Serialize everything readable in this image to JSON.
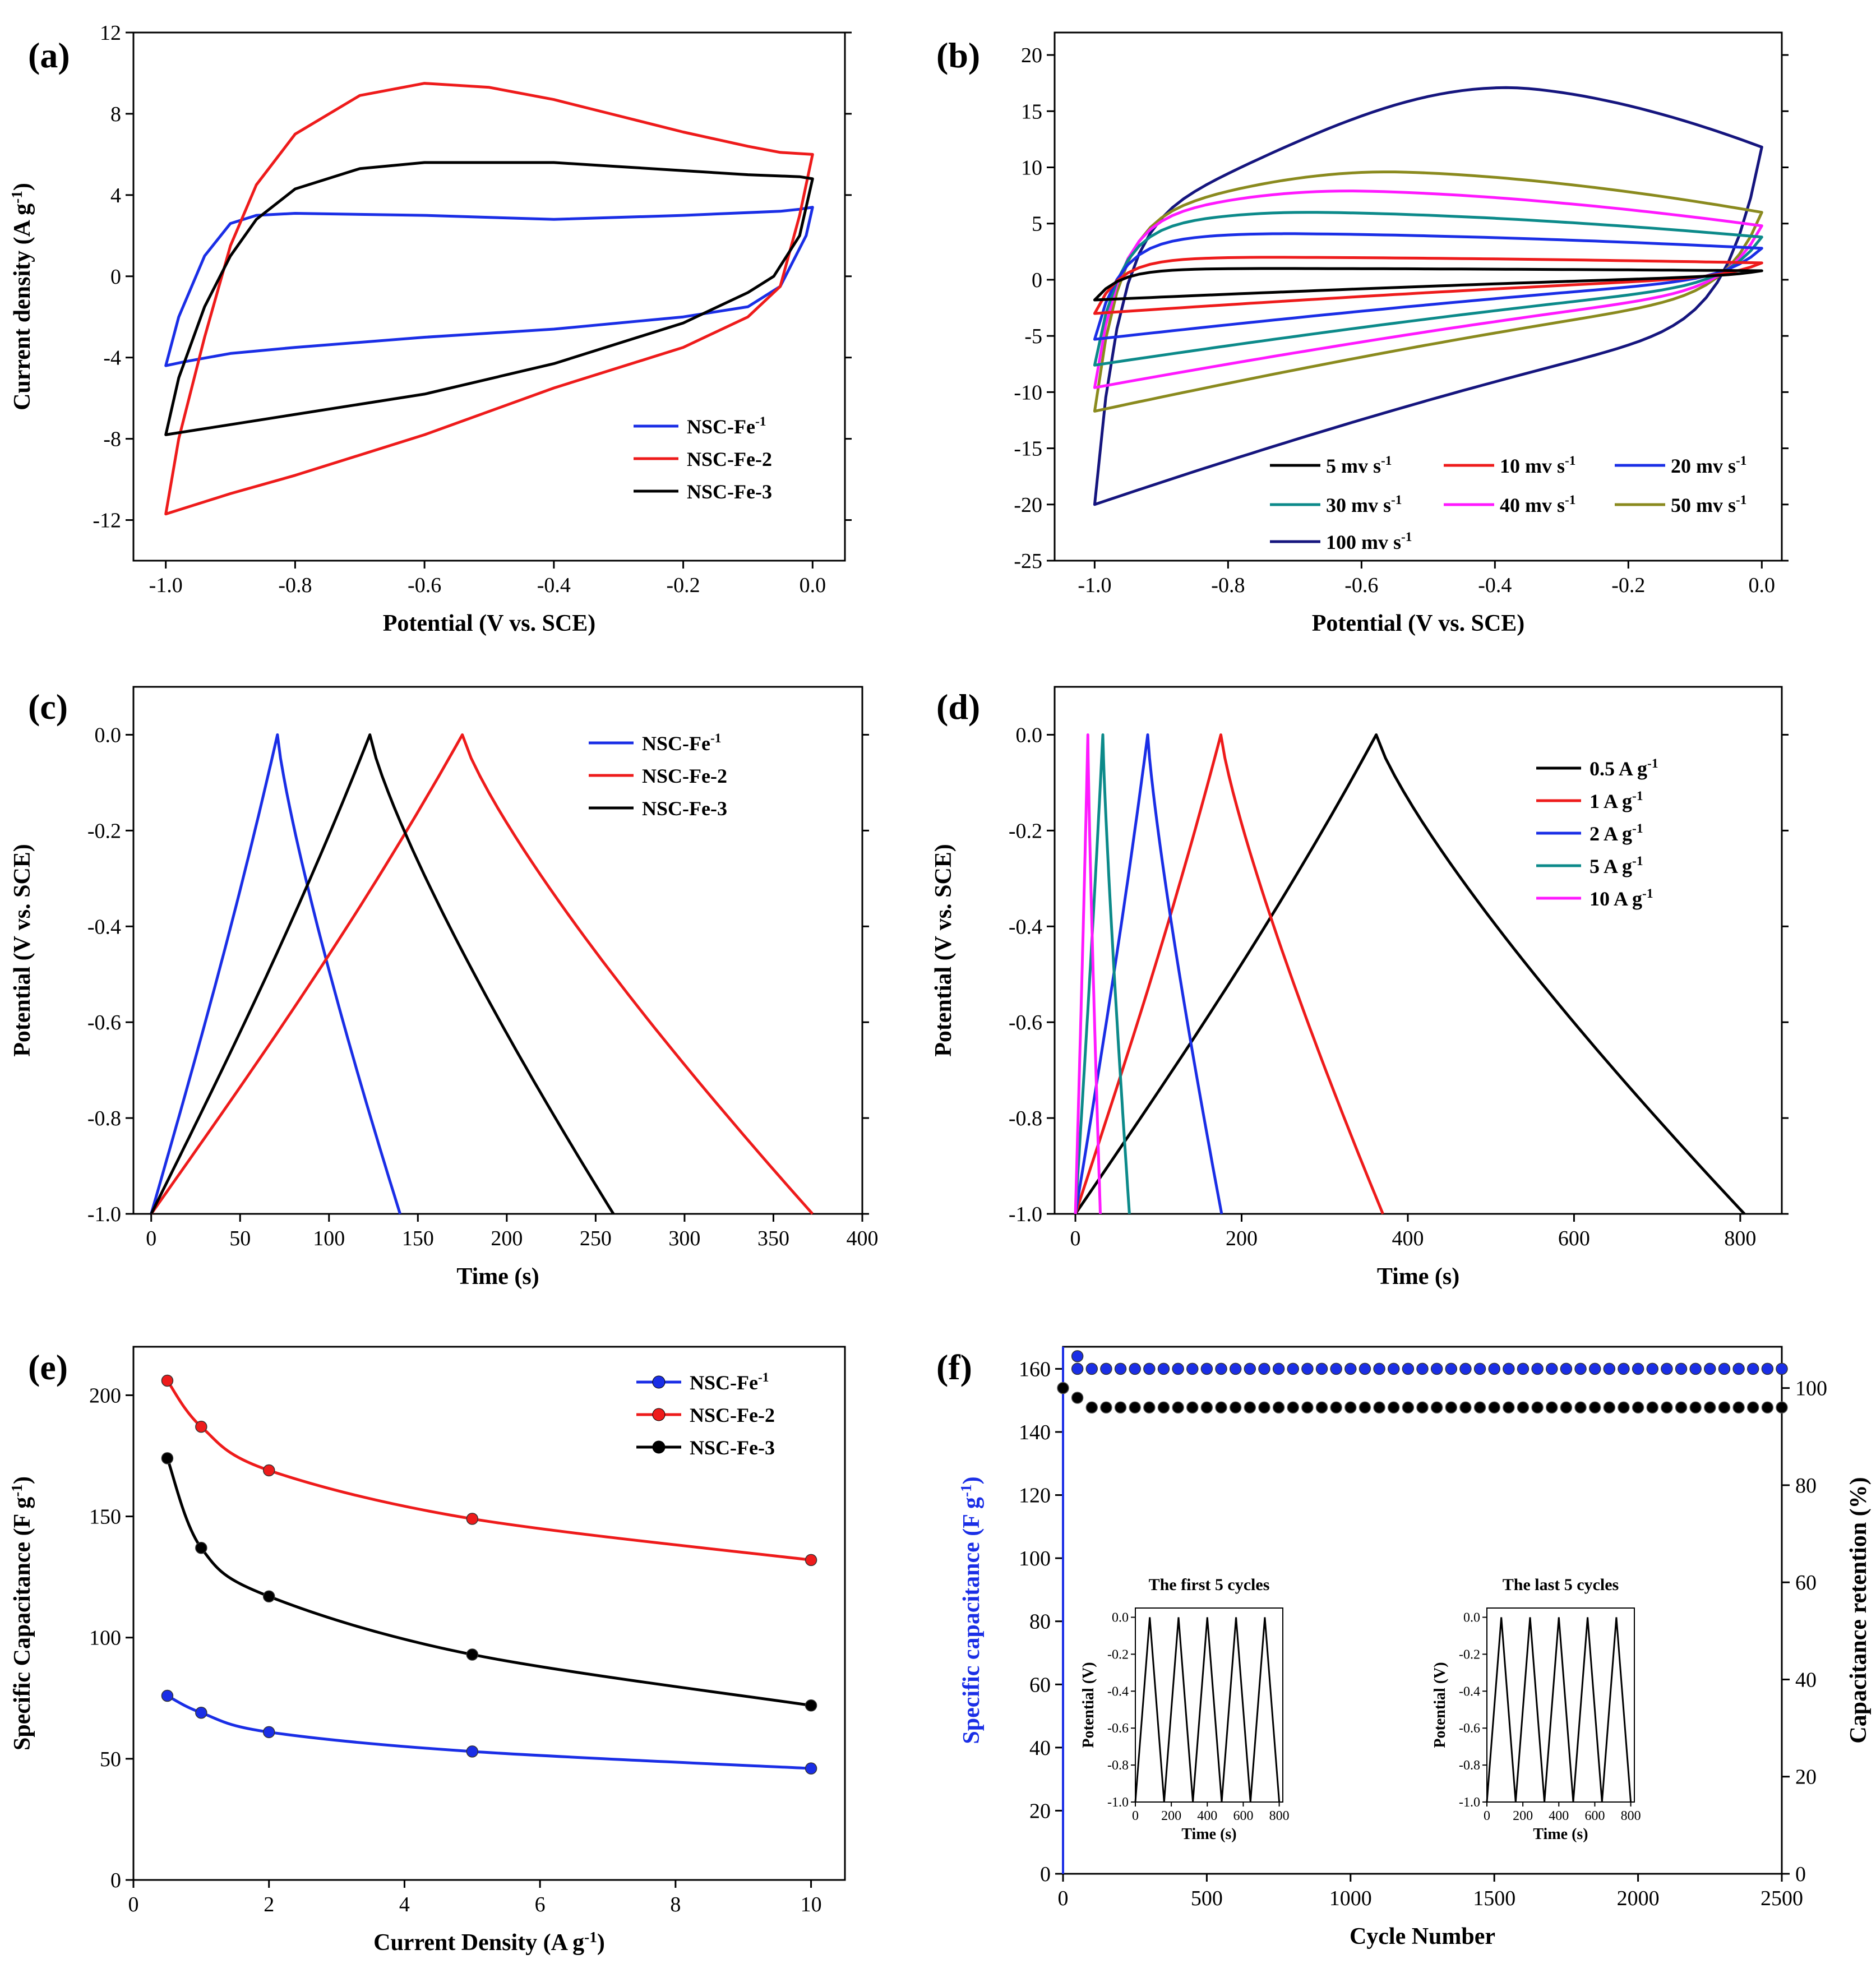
{
  "chart_data": [
    {
      "id": "a",
      "label": "(a)",
      "type": "line",
      "xlabel": "Potential (V vs. SCE)",
      "ylabel": "Current density (A g-1)",
      "xlim": [
        -1.05,
        0.05
      ],
      "ylim": [
        -14,
        12
      ],
      "xticks": [
        -1.0,
        -0.8,
        -0.6,
        -0.4,
        -0.2,
        0.0
      ],
      "xtick_labels": [
        "-1.0",
        "-0.8",
        "-0.6",
        "-0.4",
        "-0.2",
        "0.0"
      ],
      "yticks": [
        -12,
        -8,
        -4,
        0,
        4,
        8,
        12
      ],
      "ytick_labels": [
        "-12",
        "-8",
        "-4",
        "0",
        "4",
        "8",
        "12"
      ],
      "legend_position": "bottom-right",
      "series": [
        {
          "name": "NSC-Fe-1",
          "color": "#1a2ee6",
          "x": [
            -1.0,
            -0.98,
            -0.94,
            -0.9,
            -0.86,
            -0.8,
            -0.6,
            -0.4,
            -0.2,
            -0.05,
            -0.02,
            0.0,
            -0.01,
            -0.05,
            -0.1,
            -0.2,
            -0.4,
            -0.6,
            -0.8,
            -0.9,
            -0.97,
            -1.0
          ],
          "y": [
            -4.4,
            -2.0,
            1.0,
            2.6,
            3.0,
            3.1,
            3.0,
            2.8,
            3.0,
            3.2,
            3.3,
            3.4,
            2.0,
            -0.5,
            -1.5,
            -2.0,
            -2.6,
            -3.0,
            -3.5,
            -3.8,
            -4.2,
            -4.4
          ]
        },
        {
          "name": "NSC-Fe-2",
          "color": "#ee1b1b",
          "x": [
            -1.0,
            -0.98,
            -0.94,
            -0.9,
            -0.86,
            -0.8,
            -0.7,
            -0.6,
            -0.5,
            -0.4,
            -0.3,
            -0.2,
            -0.1,
            -0.05,
            0.0,
            -0.02,
            -0.05,
            -0.1,
            -0.2,
            -0.4,
            -0.6,
            -0.8,
            -0.9,
            -1.0
          ],
          "y": [
            -11.7,
            -8.0,
            -3.0,
            1.5,
            4.5,
            7.0,
            8.9,
            9.5,
            9.3,
            8.7,
            7.9,
            7.1,
            6.4,
            6.1,
            6.0,
            3.0,
            -0.5,
            -2.0,
            -3.5,
            -5.5,
            -7.8,
            -9.8,
            -10.7,
            -11.7
          ]
        },
        {
          "name": "NSC-Fe-3",
          "color": "#000000",
          "x": [
            -1.0,
            -0.98,
            -0.94,
            -0.9,
            -0.86,
            -0.8,
            -0.7,
            -0.6,
            -0.5,
            -0.4,
            -0.3,
            -0.2,
            -0.1,
            -0.02,
            0.0,
            -0.02,
            -0.06,
            -0.1,
            -0.2,
            -0.4,
            -0.6,
            -0.8,
            -0.9,
            -1.0
          ],
          "y": [
            -7.8,
            -5.0,
            -1.5,
            1.0,
            2.8,
            4.3,
            5.3,
            5.6,
            5.6,
            5.6,
            5.4,
            5.2,
            5.0,
            4.9,
            4.8,
            2.0,
            0.0,
            -0.8,
            -2.3,
            -4.3,
            -5.8,
            -6.8,
            -7.3,
            -7.8
          ]
        }
      ]
    },
    {
      "id": "b",
      "label": "(b)",
      "type": "line",
      "xlabel": "Potential (V vs. SCE)",
      "ylabel": "",
      "xlim": [
        -1.06,
        0.03
      ],
      "ylim": [
        -25,
        22
      ],
      "xticks": [
        -1.0,
        -0.8,
        -0.6,
        -0.4,
        -0.2,
        0.0
      ],
      "xtick_labels": [
        "-1.0",
        "-0.8",
        "-0.6",
        "-0.4",
        "-0.2",
        "0.0"
      ],
      "yticks": [
        -25,
        -20,
        -15,
        -10,
        -5,
        0,
        5,
        10,
        15,
        20
      ],
      "ytick_labels": [
        "-25",
        "-20",
        "-15",
        "-10",
        "-5",
        "0",
        "5",
        "10",
        "15",
        "20"
      ],
      "legend_position": "bottom-right",
      "series": [
        {
          "name": "5  mv s-1",
          "color": "#000000",
          "curve": {
            "top": 1.0,
            "peak_x": -0.75,
            "right_top": 0.8,
            "right_bottom": 0.3,
            "left": -1.8
          }
        },
        {
          "name": "10 mv s-1",
          "color": "#ee1b1b",
          "curve": {
            "top": 2.0,
            "peak_x": -0.75,
            "right_top": 1.5,
            "right_bottom": 0.2,
            "left": -3.0
          }
        },
        {
          "name": "20 mv s-1",
          "color": "#1a2ee6",
          "curve": {
            "top": 4.1,
            "peak_x": -0.72,
            "right_top": 2.8,
            "right_bottom": 0.0,
            "left": -5.3
          }
        },
        {
          "name": "30 mv s-1",
          "color": "#0c8a8a",
          "curve": {
            "top": 6.0,
            "peak_x": -0.68,
            "right_top": 3.8,
            "right_bottom": -0.5,
            "left": -7.6
          }
        },
        {
          "name": "40 mv s-1",
          "color": "#ff19ff",
          "curve": {
            "top": 7.9,
            "peak_x": -0.62,
            "right_top": 4.8,
            "right_bottom": -1.0,
            "left": -9.6
          }
        },
        {
          "name": "50 mv s-1",
          "color": "#8a8a1e",
          "curve": {
            "top": 9.6,
            "peak_x": -0.56,
            "right_top": 6.0,
            "right_bottom": -1.5,
            "left": -11.7
          }
        },
        {
          "name": "100 mv s-1",
          "color": "#15157e",
          "curve": {
            "top": 17.1,
            "peak_x": -0.38,
            "right_top": 11.8,
            "right_bottom": -4.0,
            "left": -20.0
          }
        }
      ]
    },
    {
      "id": "c",
      "label": "(c)",
      "type": "line",
      "xlabel": "Time (s)",
      "ylabel": "Potential (V vs. SCE)",
      "xlim": [
        -10,
        400
      ],
      "ylim": [
        -1.0,
        0.1
      ],
      "xticks": [
        0,
        50,
        100,
        150,
        200,
        250,
        300,
        350,
        400
      ],
      "xtick_labels": [
        "0",
        "50",
        "100",
        "150",
        "200",
        "250",
        "300",
        "350",
        "400"
      ],
      "yticks": [
        -1.0,
        -0.8,
        -0.6,
        -0.4,
        -0.2,
        0.0
      ],
      "ytick_labels": [
        "-1.0",
        "-0.8",
        "-0.6",
        "-0.4",
        "-0.2",
        "0.0"
      ],
      "legend_position": "top-right",
      "series": [
        {
          "name": "NSC-Fe-1",
          "color": "#1a2ee6",
          "gcd": {
            "t_peak": 71,
            "t_end": 140
          }
        },
        {
          "name": "NSC-Fe-2",
          "color": "#ee1b1b",
          "gcd": {
            "t_peak": 175,
            "t_end": 372
          }
        },
        {
          "name": "NSC-Fe-3",
          "color": "#000000",
          "gcd": {
            "t_peak": 123,
            "t_end": 260
          }
        }
      ]
    },
    {
      "id": "d",
      "label": "(d)",
      "type": "line",
      "xlabel": "Time (s)",
      "ylabel": "Potential  (V vs. SCE)",
      "xlim": [
        -25,
        850
      ],
      "ylim": [
        -1.0,
        0.1
      ],
      "xticks": [
        0,
        200,
        400,
        600,
        800
      ],
      "xtick_labels": [
        "0",
        "200",
        "400",
        "600",
        "800"
      ],
      "yticks": [
        -1.0,
        -0.8,
        -0.6,
        -0.4,
        -0.2,
        0.0
      ],
      "ytick_labels": [
        "-1.0",
        "-0.8",
        "-0.6",
        "-0.4",
        "-0.2",
        "0.0"
      ],
      "legend_position": "top-right",
      "series": [
        {
          "name": "0.5 A g-1",
          "color": "#000000",
          "gcd": {
            "t_peak": 362,
            "t_end": 805
          }
        },
        {
          "name": "1   A g-1",
          "color": "#ee1b1b",
          "gcd": {
            "t_peak": 175,
            "t_end": 370
          }
        },
        {
          "name": "2   A g-1",
          "color": "#1a2ee6",
          "gcd": {
            "t_peak": 87,
            "t_end": 176
          }
        },
        {
          "name": "5   A g-1",
          "color": "#0c8a8a",
          "gcd": {
            "t_peak": 33,
            "t_end": 65
          }
        },
        {
          "name": "10  A g-1",
          "color": "#ff19ff",
          "gcd": {
            "t_peak": 15,
            "t_end": 30
          }
        }
      ]
    },
    {
      "id": "e",
      "label": "(e)",
      "type": "line",
      "xlabel": "Current Density (A g-1)",
      "ylabel": "Specific Capacitance (F g-1)",
      "xlim": [
        0,
        10.5
      ],
      "ylim": [
        0,
        220
      ],
      "xticks": [
        0,
        2,
        4,
        6,
        8,
        10
      ],
      "xtick_labels": [
        "0",
        "2",
        "4",
        "6",
        "8",
        "10"
      ],
      "yticks": [
        0,
        50,
        100,
        150,
        200
      ],
      "ytick_labels": [
        "0",
        "50",
        "100",
        "150",
        "200"
      ],
      "legend_position": "top-right",
      "series": [
        {
          "name": "NSC-Fe-1",
          "color": "#1a2ee6",
          "x": [
            0.5,
            1,
            2,
            5,
            10
          ],
          "y": [
            76,
            69,
            61,
            53,
            46
          ]
        },
        {
          "name": "NSC-Fe-2",
          "color": "#ee1b1b",
          "x": [
            0.5,
            1,
            2,
            5,
            10
          ],
          "y": [
            206,
            187,
            169,
            149,
            132
          ]
        },
        {
          "name": "NSC-Fe-3",
          "color": "#000000",
          "x": [
            0.5,
            1,
            2,
            5,
            10
          ],
          "y": [
            174,
            137,
            117,
            93,
            72
          ]
        }
      ]
    },
    {
      "id": "f",
      "label": "(f)",
      "type": "scatter",
      "xlabel": "Cycle Number",
      "ylabel": "Specific capacitance (F g-1)",
      "y2label": "Capacitance retention (%)",
      "xlim": [
        0,
        2500
      ],
      "ylim": [
        0,
        167
      ],
      "y2lim": [
        0,
        108.5
      ],
      "xticks": [
        0,
        500,
        1000,
        1500,
        2000,
        2500
      ],
      "xtick_labels": [
        "0",
        "500",
        "1000",
        "1500",
        "2000",
        "2500"
      ],
      "yticks": [
        0,
        20,
        40,
        60,
        80,
        100,
        120,
        140,
        160
      ],
      "ytick_labels": [
        "0",
        "20",
        "40",
        "60",
        "80",
        "100",
        "120",
        "140",
        "160"
      ],
      "y2ticks": [
        0,
        20,
        40,
        60,
        80,
        100
      ],
      "y2tick_labels": [
        "0",
        "20",
        "40",
        "60",
        "80",
        "100"
      ],
      "series": [
        {
          "name": "Specific capacitance",
          "color": "#1a2ee6",
          "axis": "left",
          "first": 164,
          "value": 160
        },
        {
          "name": "Capacitance retention",
          "color": "#000000",
          "axis": "right",
          "first": 100,
          "second": 98,
          "value": 96
        }
      ],
      "insets": [
        {
          "title": "The first 5 cycles",
          "xlabel": "Time (s)",
          "ylabel": "Potential (V)",
          "xlim": [
            0,
            820
          ],
          "ylim": [
            -1.0,
            0.05
          ],
          "xticks": [
            0,
            200,
            400,
            600,
            800
          ],
          "xtick_labels": [
            "0",
            "200",
            "400",
            "600",
            "800"
          ],
          "yticks": [
            -1.0,
            -0.8,
            -0.6,
            -0.4,
            -0.2,
            0.0
          ],
          "ytick_labels": [
            "-1.0",
            "-0.8",
            "-0.6",
            "-0.4",
            "-0.2",
            "0.0"
          ],
          "cycles": 5,
          "period": 160,
          "t_peak": 80
        },
        {
          "title": "The last 5 cycles",
          "xlabel": "Time (s)",
          "ylabel": "Potential (V)",
          "xlim": [
            0,
            820
          ],
          "ylim": [
            -1.0,
            0.05
          ],
          "xticks": [
            0,
            200,
            400,
            600,
            800
          ],
          "xtick_labels": [
            "0",
            "200",
            "400",
            "600",
            "800"
          ],
          "yticks": [
            -1.0,
            -0.8,
            -0.6,
            -0.4,
            -0.2,
            0.0
          ],
          "ytick_labels": [
            "-1.0",
            "-0.8",
            "-0.6",
            "-0.4",
            "-0.2",
            "0.0"
          ],
          "cycles": 5,
          "period": 160,
          "t_peak": 80
        }
      ]
    }
  ]
}
